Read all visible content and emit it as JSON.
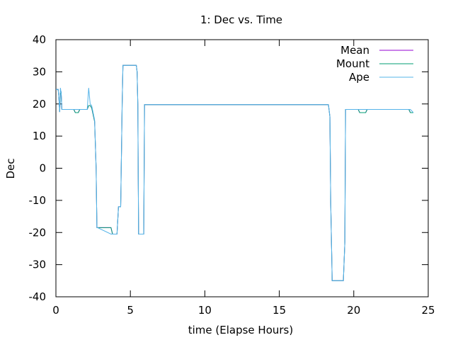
{
  "chart_data": {
    "type": "line",
    "title": "1: Dec vs. Time",
    "xlabel": "time (Elapse Hours)",
    "ylabel": "Dec",
    "xlim": [
      0,
      25
    ],
    "ylim": [
      -40,
      40
    ],
    "xticks": [
      0,
      5,
      10,
      15,
      20,
      25
    ],
    "yticks": [
      -40,
      -30,
      -20,
      -10,
      0,
      10,
      20,
      30,
      40
    ],
    "grid": false,
    "legend_position": "top-right",
    "series": [
      {
        "name": "Mean",
        "color": "#9400d3",
        "x": [
          0,
          0.15,
          0.2,
          0.25,
          0.3,
          0.35,
          0.4,
          0.5,
          1.2,
          1.3,
          1.5,
          1.6,
          2.1,
          2.2,
          2.3,
          2.4,
          2.6,
          2.7,
          2.75,
          2.8,
          3.7,
          3.8,
          4.1,
          4.2,
          4.35,
          4.45,
          4.5,
          4.6,
          5.4,
          5.45,
          5.5,
          5.55,
          5.6,
          5.9,
          5.95,
          6.0,
          15.0,
          18.3,
          18.4,
          18.45,
          18.55,
          19.3,
          19.4,
          19.45,
          20.3,
          20.4,
          20.8,
          20.9,
          23.7,
          23.8,
          24.0
        ],
        "values": [
          24.5,
          24.5,
          22,
          17.5,
          23,
          23.5,
          18.3,
          18.3,
          18.3,
          17.3,
          17.3,
          18.3,
          18.3,
          19.5,
          19.5,
          18.8,
          14.5,
          0,
          -18.5,
          -18.5,
          -18.5,
          -20.5,
          -20.5,
          -12,
          -12,
          20,
          32,
          32,
          32,
          30,
          20,
          -20.5,
          -20.5,
          -20.5,
          19.8,
          19.8,
          19.8,
          19.8,
          16,
          -10,
          -35,
          -35,
          -23,
          18.3,
          18.3,
          17.3,
          17.3,
          18.3,
          18.3,
          17.3,
          17.3
        ]
      },
      {
        "name": "Mount",
        "color": "#009e73",
        "x": [
          0,
          0.15,
          0.2,
          0.25,
          0.3,
          0.35,
          0.4,
          0.5,
          1.2,
          1.3,
          1.5,
          1.6,
          2.1,
          2.2,
          2.3,
          2.4,
          2.6,
          2.7,
          2.75,
          2.8,
          3.7,
          3.8,
          4.1,
          4.2,
          4.35,
          4.45,
          4.5,
          4.6,
          5.4,
          5.45,
          5.5,
          5.55,
          5.6,
          5.9,
          5.95,
          6.0,
          15.0,
          18.3,
          18.4,
          18.45,
          18.55,
          19.3,
          19.4,
          19.45,
          20.3,
          20.4,
          20.8,
          20.9,
          23.7,
          23.8,
          24.0
        ],
        "values": [
          24.5,
          24.5,
          22,
          17.5,
          23,
          23.5,
          18.3,
          18.3,
          18.3,
          17.3,
          17.3,
          18.3,
          18.3,
          19.5,
          19.5,
          18.8,
          14.5,
          0,
          -18.5,
          -18.5,
          -18.5,
          -20.5,
          -20.5,
          -12,
          -12,
          20,
          32,
          32,
          32,
          30,
          20,
          -20.5,
          -20.5,
          -20.5,
          19.8,
          19.8,
          19.8,
          19.8,
          16,
          -10,
          -35,
          -35,
          -23,
          18.3,
          18.3,
          17.3,
          17.3,
          18.3,
          18.3,
          17.3,
          17.3
        ]
      },
      {
        "name": "Ape",
        "color": "#56b4e9",
        "x": [
          0,
          0.15,
          0.2,
          0.25,
          0.3,
          0.35,
          0.4,
          0.5,
          1.2,
          1.3,
          1.5,
          1.6,
          2.1,
          2.2,
          2.3,
          2.4,
          2.6,
          2.7,
          2.75,
          2.8,
          3.7,
          3.8,
          4.1,
          4.2,
          4.35,
          4.45,
          4.5,
          4.6,
          5.4,
          5.45,
          5.5,
          5.55,
          5.6,
          5.9,
          5.95,
          6.0,
          15.0,
          18.3,
          18.4,
          18.45,
          18.55,
          19.3,
          19.4,
          19.45,
          20.3,
          20.4,
          20.8,
          20.9,
          23.7,
          23.8,
          24.0
        ],
        "values": [
          24.5,
          24.5,
          22,
          17.5,
          25,
          23.5,
          18.3,
          18.3,
          18.3,
          18.3,
          18.3,
          18.3,
          18.3,
          25,
          20,
          19.5,
          15,
          0,
          -18.5,
          -18.5,
          -20.5,
          -20.5,
          -20.5,
          -12,
          -12,
          20,
          32,
          32,
          32,
          30,
          20,
          -20.5,
          -20.5,
          -20.5,
          19.8,
          19.8,
          19.8,
          19.8,
          16,
          -10,
          -35,
          -35,
          -23,
          18.3,
          18.3,
          18.3,
          18.3,
          18.3,
          18.3,
          18.3,
          17.3
        ]
      }
    ]
  }
}
